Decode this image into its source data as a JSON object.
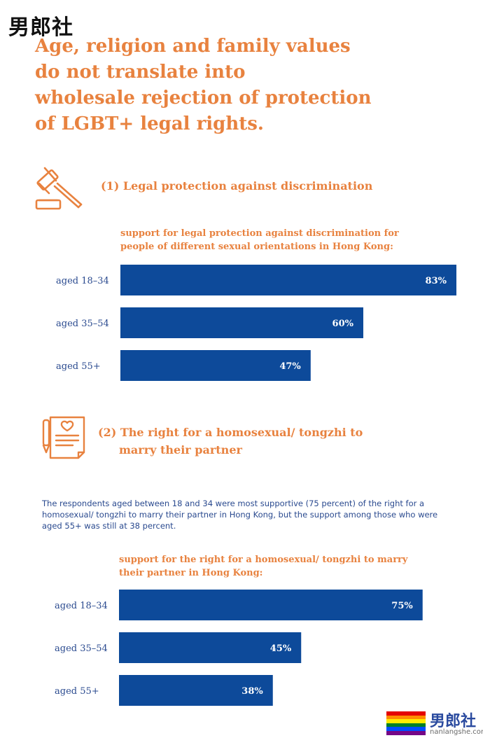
{
  "watermark": {
    "top_text": "男郎社",
    "bottom_text": "男郎社",
    "bottom_url": "nanlangshe.com"
  },
  "headline": {
    "lines": [
      "Age, religion and family values",
      "do not translate into",
      "wholesale rejection of protection",
      "of LGBT+ legal rights."
    ]
  },
  "section1": {
    "title": "(1) Legal protection against discrimination",
    "icon": "gavel-icon"
  },
  "section2": {
    "title_line1": "(2) The right for a homosexual/ tongzhi to",
    "title_line2": "marry their partner",
    "icon": "marriage-certificate-icon"
  },
  "paragraph": "The respondents aged between 18 and 34 were most supportive (75 percent) of the right for a homosexual/ tongzhi to marry their partner in Hong Kong, but the support among those who were aged 55+ was still at 38 percent.",
  "colors": {
    "accent": "#e8823f",
    "bar": "#0d4a9a",
    "text_blue": "#2a4a8f"
  },
  "chart_data": [
    {
      "type": "bar",
      "orientation": "horizontal",
      "title": "",
      "caption_lines": [
        "support for legal protection against discrimination for",
        "people of different sexual orientations in Hong Kong:"
      ],
      "categories": [
        "aged 18–34",
        "aged 35–54",
        "aged 55+"
      ],
      "values": [
        83,
        60,
        47
      ],
      "value_labels": [
        "83%",
        "60%",
        "47%"
      ],
      "xlim": [
        0,
        83
      ],
      "grid": false
    },
    {
      "type": "bar",
      "orientation": "horizontal",
      "title": "",
      "caption_lines": [
        "support for the right for a homosexual/ tongzhi to marry",
        "their partner in Hong Kong:"
      ],
      "categories": [
        "aged 18–34",
        "aged 35–54",
        "aged 55+"
      ],
      "values": [
        75,
        45,
        38
      ],
      "value_labels": [
        "75%",
        "45%",
        "38%"
      ],
      "xlim": [
        0,
        83
      ],
      "grid": false
    }
  ]
}
